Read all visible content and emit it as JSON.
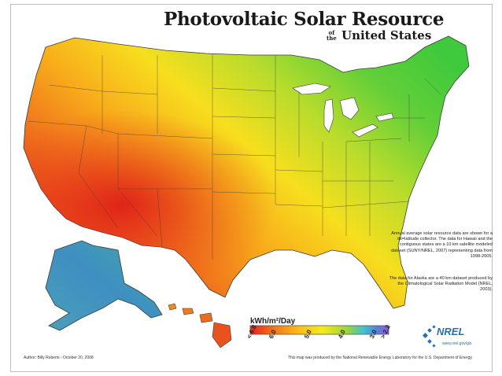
{
  "title": "Photovoltaic Solar Resource",
  "subtitle_of": "of",
  "subtitle_the": "the",
  "subtitle": "United States",
  "note_1": "Annual average solar resource data are shown for a tilt=latitude collector. The data for Hawaii and the contiguous states are a 10 km satellite modeled dataset (SUNY/NREL, 2007) representing data from 1998-2005.",
  "note_2": "The data for Alaska are a 40 km dataset produced by the Climatological Solar Radiation Model (NREL, 2003).",
  "legend": {
    "title": "kWh/m²/Day",
    "ticks": [
      "< 6.8",
      "6.0",
      "5.0",
      "4.0",
      "3.0",
      "> 2.2"
    ],
    "colors": [
      "#e8231d",
      "#f47a1b",
      "#fbbf1a",
      "#f6e91c",
      "#9ad63a",
      "#3ec2cf",
      "#5a7fd8",
      "#9b5ad8"
    ]
  },
  "logo_text": "NREL",
  "logo_url": "www.nrel.gov/gis",
  "author": "Author: Billy Roberts - October 20, 2008",
  "credit": "This map was produced by the National Renewable Energy Laboratory for the U.S. Department of Energy.",
  "colors": {
    "high": "#e63a1e",
    "mid": "#f7c51b",
    "low": "#48c93f",
    "alaska": "#3f9fb0"
  }
}
